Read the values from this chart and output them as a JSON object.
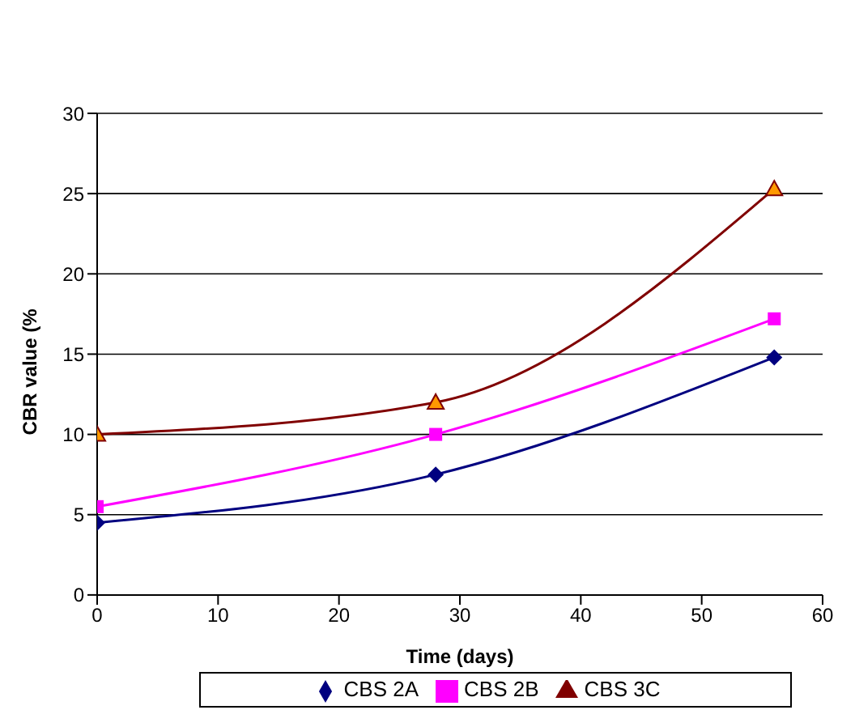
{
  "chart_data": {
    "type": "line",
    "xlabel": "Time (days)",
    "ylabel": "CBR value (%",
    "x": [
      0,
      28,
      56
    ],
    "series": [
      {
        "name": "CBS 2A",
        "color": "#000080",
        "values": [
          4.5,
          7.5,
          14.8
        ],
        "marker": "diamond"
      },
      {
        "name": "CBS 2B",
        "color": "#ff00ff",
        "values": [
          5.5,
          10,
          17.2
        ],
        "marker": "square"
      },
      {
        "name": "CBS 3C",
        "color": "#800000",
        "values": [
          10,
          12,
          25.3
        ],
        "marker": "triangle"
      }
    ],
    "xlim": [
      0,
      60
    ],
    "xticks": [
      0,
      10,
      20,
      30,
      40,
      50,
      60
    ],
    "ylim": [
      0,
      30
    ],
    "yticks": [
      0,
      5,
      10,
      15,
      20,
      25,
      30
    ],
    "grid": "y",
    "legend": "bottom"
  }
}
